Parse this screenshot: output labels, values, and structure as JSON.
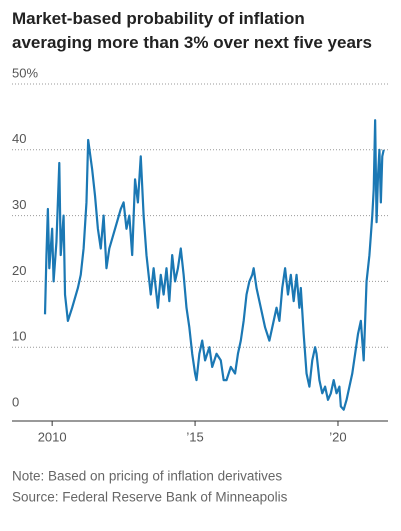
{
  "chart_data": {
    "type": "line",
    "title": "Market-based probability of inflation averaging more than 3% over next five years",
    "note": "Note: Based on pricing of inflation derivatives",
    "source": "Source: Federal Reserve Bank of Minneapolis",
    "color": "#1b78b4",
    "grid": true,
    "xlim": [
      2008.7,
      2021.75
    ],
    "xticks": [
      {
        "value": 2010,
        "label": "2010"
      },
      {
        "value": 2015,
        "label": "’15"
      },
      {
        "value": 2020,
        "label": "’20"
      }
    ],
    "ylim": [
      0,
      50
    ],
    "yticks": [
      0,
      10,
      20,
      30,
      40,
      {
        "value": 50,
        "label": "50%"
      }
    ],
    "x": [
      2009.75,
      2009.8,
      2009.85,
      2009.9,
      2010.0,
      2010.05,
      2010.15,
      2010.25,
      2010.3,
      2010.4,
      2010.45,
      2010.55,
      2010.7,
      2010.9,
      2011.0,
      2011.1,
      2011.2,
      2011.26,
      2011.4,
      2011.5,
      2011.6,
      2011.7,
      2011.8,
      2011.9,
      2012.0,
      2012.2,
      2012.4,
      2012.5,
      2012.6,
      2012.7,
      2012.8,
      2012.9,
      2013.0,
      2013.1,
      2013.2,
      2013.3,
      2013.45,
      2013.55,
      2013.7,
      2013.8,
      2013.9,
      2014.0,
      2014.1,
      2014.2,
      2014.3,
      2014.4,
      2014.5,
      2014.6,
      2014.7,
      2014.8,
      2014.85,
      2014.9,
      2015.0,
      2015.05,
      2015.15,
      2015.25,
      2015.35,
      2015.5,
      2015.6,
      2015.75,
      2015.9,
      2016.0,
      2016.1,
      2016.25,
      2016.4,
      2016.5,
      2016.6,
      2016.7,
      2016.8,
      2016.9,
      2017.0,
      2017.05,
      2017.15,
      2017.3,
      2017.45,
      2017.6,
      2017.7,
      2017.85,
      2017.95,
      2018.05,
      2018.15,
      2018.25,
      2018.35,
      2018.45,
      2018.55,
      2018.65,
      2018.7,
      2018.8,
      2018.9,
      2019.0,
      2019.1,
      2019.2,
      2019.25,
      2019.35,
      2019.45,
      2019.55,
      2019.65,
      2019.75,
      2019.85,
      2019.95,
      2020.05,
      2020.1,
      2020.2,
      2020.3,
      2020.4,
      2020.5,
      2020.6,
      2020.7,
      2020.8,
      2020.9,
      2021.0,
      2021.1,
      2021.2,
      2021.25,
      2021.3,
      2021.35,
      2021.4,
      2021.45,
      2021.5,
      2021.55,
      2021.6
    ],
    "values": [
      15,
      24,
      31,
      22,
      28,
      20,
      26,
      38,
      24,
      30,
      18,
      14,
      16,
      19,
      21,
      25,
      32,
      41.5,
      37,
      33,
      28,
      25,
      30,
      22,
      25,
      28,
      31,
      32,
      28,
      30,
      24,
      35.5,
      32,
      39,
      30,
      24,
      18,
      22,
      16,
      21,
      18,
      22,
      17,
      24,
      20,
      22,
      25,
      21,
      16,
      13,
      11,
      9,
      6,
      5,
      9,
      11,
      8,
      10,
      7,
      9,
      8,
      5,
      5,
      7,
      6,
      9,
      11,
      14,
      18,
      20,
      21,
      22,
      19,
      16,
      13,
      11,
      13,
      16,
      14,
      19,
      22,
      18,
      21,
      17,
      21,
      16,
      19,
      12,
      6,
      4,
      8,
      10,
      9,
      5,
      3,
      4,
      2,
      3,
      5,
      3,
      4,
      1,
      0.5,
      2,
      4,
      6,
      9,
      12,
      14,
      8,
      20,
      24,
      30,
      34,
      44.5,
      29,
      36,
      40,
      32,
      39,
      40
    ]
  }
}
